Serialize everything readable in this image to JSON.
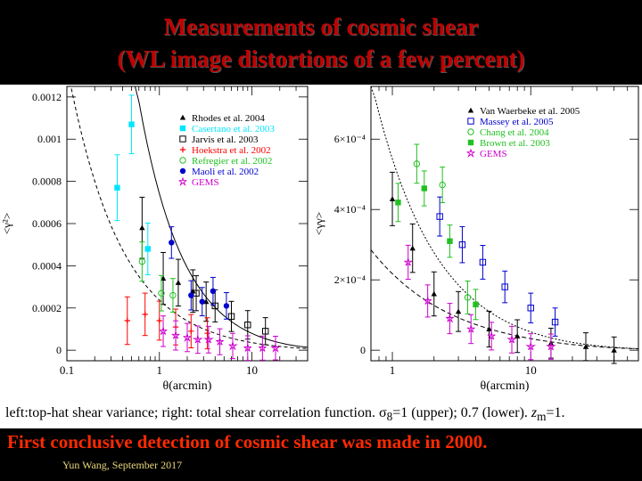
{
  "slide": {
    "title_line1": "Measurements of cosmic shear",
    "title_line2": "(WL image distortions of a few percent)",
    "caption_main": "left:top-hat shear variance; right: total shear correlation function. ",
    "caption_sigma": "σ",
    "caption_sub8": "8",
    "caption_rest": "=1 (upper); 0.7 (lower). ",
    "caption_z": "z",
    "caption_zsub": "m",
    "caption_end": "=1.",
    "headline": "First conclusive detection of cosmic shear was made in 2000.",
    "footer": "Yun Wang, September 2017"
  },
  "chart_data": [
    {
      "type": "scatter",
      "xscale": "log",
      "xlabel": "θ(arcmin)",
      "ylabel": "<γ²>",
      "xlim": [
        0.1,
        40
      ],
      "ylim": [
        -5e-05,
        0.00125
      ],
      "yticks": [
        "0",
        "0.0002",
        "0.0004",
        "0.0006",
        "0.0008",
        "0.001",
        "0.0012"
      ],
      "xticks": [
        "0.1",
        "1",
        "10"
      ],
      "series": [
        {
          "name": "Rhodes et al. 2004",
          "color": "#000000",
          "marker": "triangle",
          "points": [
            [
              0.65,
              0.00058
            ],
            [
              1.1,
              0.00034
            ],
            [
              1.6,
              0.00032
            ],
            [
              2.3,
              0.00028
            ],
            [
              3.2,
              0.00023
            ]
          ]
        },
        {
          "name": "Casertano et al. 2003",
          "color": "#00e5ff",
          "marker": "square",
          "points": [
            [
              0.35,
              0.00077
            ],
            [
              0.5,
              0.00107
            ],
            [
              0.75,
              0.00048
            ]
          ]
        },
        {
          "name": "Jarvis et al. 2003",
          "color": "#000000",
          "marker": "open-square",
          "points": [
            [
              2.5,
              0.00027
            ],
            [
              4,
              0.00021
            ],
            [
              6,
              0.00016
            ],
            [
              9,
              0.00012
            ],
            [
              14,
              9e-05
            ]
          ]
        },
        {
          "name": "Hoekstra et al. 2002",
          "color": "#ff0000",
          "marker": "plus",
          "points": [
            [
              0.45,
              0.00014
            ],
            [
              0.7,
              0.00017
            ],
            [
              1.0,
              0.00014
            ],
            [
              1.5,
              0.00011
            ],
            [
              2.2,
              9e-05
            ],
            [
              3.3,
              8e-05
            ]
          ]
        },
        {
          "name": "Refregier et al. 2002",
          "color": "#22c022",
          "marker": "open-circle",
          "points": [
            [
              0.65,
              0.00042
            ],
            [
              1.05,
              0.00027
            ],
            [
              1.4,
              0.00026
            ]
          ]
        },
        {
          "name": "Maoli et al. 2002",
          "color": "#0000cc",
          "marker": "dot",
          "points": [
            [
              1.35,
              0.00051
            ],
            [
              2.2,
              0.00026
            ],
            [
              2.9,
              0.00023
            ],
            [
              3.8,
              0.00028
            ],
            [
              5.3,
              0.00021
            ]
          ]
        },
        {
          "name": "GEMS",
          "color": "#cc00cc",
          "marker": "star",
          "points": [
            [
              1.1,
              9e-05
            ],
            [
              1.5,
              7e-05
            ],
            [
              2.0,
              6e-05
            ],
            [
              2.6,
              5e-05
            ],
            [
              3.4,
              5e-05
            ],
            [
              4.5,
              4e-05
            ],
            [
              6.2,
              2e-05
            ],
            [
              9,
              1e-05
            ],
            [
              13,
              1e-05
            ],
            [
              18,
              1e-05
            ]
          ]
        }
      ]
    },
    {
      "type": "scatter",
      "xscale": "log",
      "xlabel": "θ(arcmin)",
      "ylabel": "<γγ>",
      "xlim": [
        0.7,
        60
      ],
      "ylim": [
        -3e-05,
        0.00075
      ],
      "yticks": [
        "0",
        "2×10⁻⁴",
        "4×10⁻⁴",
        "6×10⁻⁴"
      ],
      "xticks": [
        "1",
        "10"
      ],
      "series": [
        {
          "name": "Van Waerbeke et al. 2005",
          "color": "#000000",
          "marker": "triangle",
          "points": [
            [
              1.0,
              0.00043
            ],
            [
              1.4,
              0.00029
            ],
            [
              2.0,
              0.00016
            ],
            [
              3.0,
              0.00011
            ],
            [
              5.0,
              6e-05
            ],
            [
              8.0,
              4e-05
            ],
            [
              14,
              2e-05
            ],
            [
              25,
              1e-05
            ],
            [
              40,
              0.0
            ]
          ]
        },
        {
          "name": "Massey et al. 2005",
          "color": "#0000cc",
          "marker": "open-square",
          "points": [
            [
              2.2,
              0.00038
            ],
            [
              3.2,
              0.0003
            ],
            [
              4.5,
              0.00025
            ],
            [
              6.5,
              0.00018
            ],
            [
              10,
              0.00012
            ],
            [
              15,
              8e-05
            ]
          ]
        },
        {
          "name": "Chang et al. 2004",
          "color": "#22c022",
          "marker": "open-circle",
          "points": [
            [
              1.5,
              0.00053
            ],
            [
              2.3,
              0.00047
            ],
            [
              3.5,
              0.00015
            ]
          ]
        },
        {
          "name": "Brown et al. 2003",
          "color": "#22c022",
          "marker": "square",
          "points": [
            [
              1.1,
              0.00042
            ],
            [
              1.7,
              0.00046
            ],
            [
              2.6,
              0.00031
            ],
            [
              4.0,
              0.00013
            ]
          ]
        },
        {
          "name": "GEMS",
          "color": "#cc00cc",
          "marker": "star",
          "points": [
            [
              1.3,
              0.00025
            ],
            [
              1.8,
              0.00014
            ],
            [
              2.6,
              9e-05
            ],
            [
              3.7,
              6e-05
            ],
            [
              5.2,
              4e-05
            ],
            [
              7.3,
              3e-05
            ],
            [
              10,
              1e-05
            ],
            [
              14,
              1e-05
            ]
          ]
        }
      ]
    }
  ]
}
